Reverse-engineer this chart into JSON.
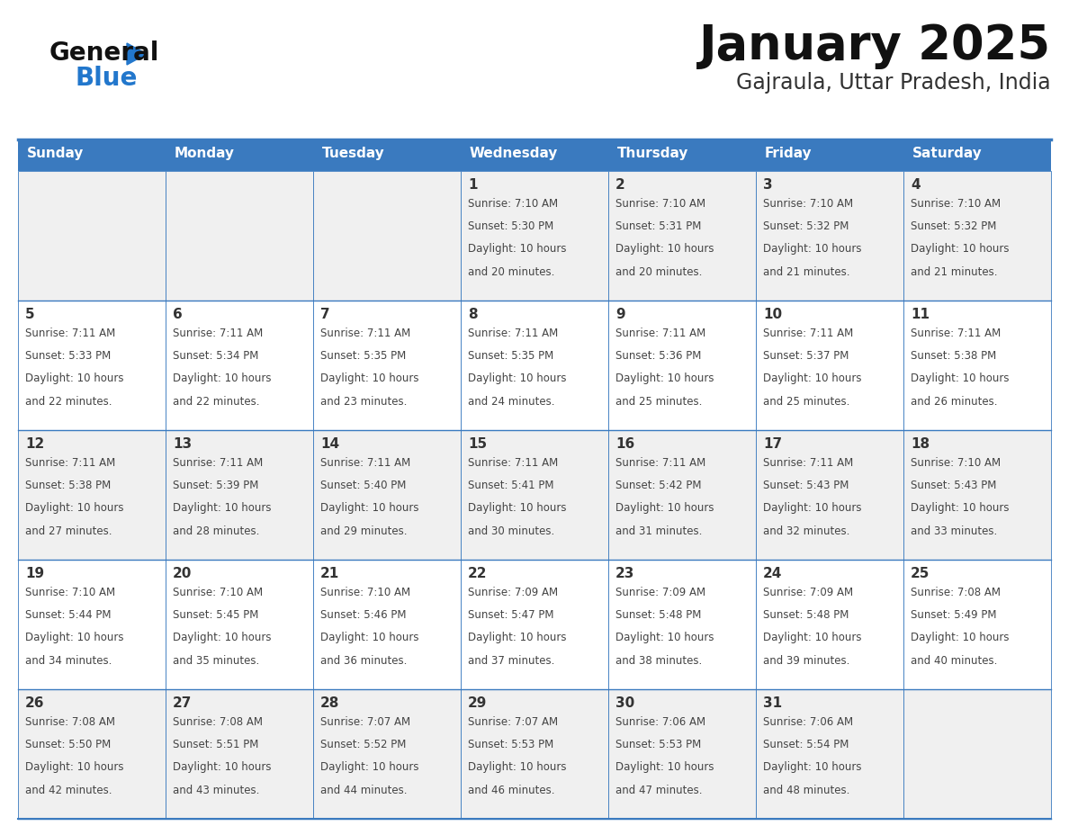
{
  "title": "January 2025",
  "subtitle": "Gajraula, Uttar Pradesh, India",
  "days_of_week": [
    "Sunday",
    "Monday",
    "Tuesday",
    "Wednesday",
    "Thursday",
    "Friday",
    "Saturday"
  ],
  "header_bg": "#3a7abf",
  "header_text": "#ffffff",
  "odd_row_bg": "#f0f0f0",
  "even_row_bg": "#ffffff",
  "cell_border": "#3a7abf",
  "day_number_color": "#333333",
  "cell_text_color": "#444444",
  "title_color": "#111111",
  "subtitle_color": "#333333",
  "logo_general_color": "#111111",
  "logo_blue_color": "#2277cc",
  "calendar": [
    [
      null,
      null,
      null,
      {
        "day": 1,
        "sunrise": "7:10 AM",
        "sunset": "5:30 PM",
        "daylight": "10 hours and 20 minutes."
      },
      {
        "day": 2,
        "sunrise": "7:10 AM",
        "sunset": "5:31 PM",
        "daylight": "10 hours and 20 minutes."
      },
      {
        "day": 3,
        "sunrise": "7:10 AM",
        "sunset": "5:32 PM",
        "daylight": "10 hours and 21 minutes."
      },
      {
        "day": 4,
        "sunrise": "7:10 AM",
        "sunset": "5:32 PM",
        "daylight": "10 hours and 21 minutes."
      }
    ],
    [
      {
        "day": 5,
        "sunrise": "7:11 AM",
        "sunset": "5:33 PM",
        "daylight": "10 hours and 22 minutes."
      },
      {
        "day": 6,
        "sunrise": "7:11 AM",
        "sunset": "5:34 PM",
        "daylight": "10 hours and 22 minutes."
      },
      {
        "day": 7,
        "sunrise": "7:11 AM",
        "sunset": "5:35 PM",
        "daylight": "10 hours and 23 minutes."
      },
      {
        "day": 8,
        "sunrise": "7:11 AM",
        "sunset": "5:35 PM",
        "daylight": "10 hours and 24 minutes."
      },
      {
        "day": 9,
        "sunrise": "7:11 AM",
        "sunset": "5:36 PM",
        "daylight": "10 hours and 25 minutes."
      },
      {
        "day": 10,
        "sunrise": "7:11 AM",
        "sunset": "5:37 PM",
        "daylight": "10 hours and 25 minutes."
      },
      {
        "day": 11,
        "sunrise": "7:11 AM",
        "sunset": "5:38 PM",
        "daylight": "10 hours and 26 minutes."
      }
    ],
    [
      {
        "day": 12,
        "sunrise": "7:11 AM",
        "sunset": "5:38 PM",
        "daylight": "10 hours and 27 minutes."
      },
      {
        "day": 13,
        "sunrise": "7:11 AM",
        "sunset": "5:39 PM",
        "daylight": "10 hours and 28 minutes."
      },
      {
        "day": 14,
        "sunrise": "7:11 AM",
        "sunset": "5:40 PM",
        "daylight": "10 hours and 29 minutes."
      },
      {
        "day": 15,
        "sunrise": "7:11 AM",
        "sunset": "5:41 PM",
        "daylight": "10 hours and 30 minutes."
      },
      {
        "day": 16,
        "sunrise": "7:11 AM",
        "sunset": "5:42 PM",
        "daylight": "10 hours and 31 minutes."
      },
      {
        "day": 17,
        "sunrise": "7:11 AM",
        "sunset": "5:43 PM",
        "daylight": "10 hours and 32 minutes."
      },
      {
        "day": 18,
        "sunrise": "7:10 AM",
        "sunset": "5:43 PM",
        "daylight": "10 hours and 33 minutes."
      }
    ],
    [
      {
        "day": 19,
        "sunrise": "7:10 AM",
        "sunset": "5:44 PM",
        "daylight": "10 hours and 34 minutes."
      },
      {
        "day": 20,
        "sunrise": "7:10 AM",
        "sunset": "5:45 PM",
        "daylight": "10 hours and 35 minutes."
      },
      {
        "day": 21,
        "sunrise": "7:10 AM",
        "sunset": "5:46 PM",
        "daylight": "10 hours and 36 minutes."
      },
      {
        "day": 22,
        "sunrise": "7:09 AM",
        "sunset": "5:47 PM",
        "daylight": "10 hours and 37 minutes."
      },
      {
        "day": 23,
        "sunrise": "7:09 AM",
        "sunset": "5:48 PM",
        "daylight": "10 hours and 38 minutes."
      },
      {
        "day": 24,
        "sunrise": "7:09 AM",
        "sunset": "5:48 PM",
        "daylight": "10 hours and 39 minutes."
      },
      {
        "day": 25,
        "sunrise": "7:08 AM",
        "sunset": "5:49 PM",
        "daylight": "10 hours and 40 minutes."
      }
    ],
    [
      {
        "day": 26,
        "sunrise": "7:08 AM",
        "sunset": "5:50 PM",
        "daylight": "10 hours and 42 minutes."
      },
      {
        "day": 27,
        "sunrise": "7:08 AM",
        "sunset": "5:51 PM",
        "daylight": "10 hours and 43 minutes."
      },
      {
        "day": 28,
        "sunrise": "7:07 AM",
        "sunset": "5:52 PM",
        "daylight": "10 hours and 44 minutes."
      },
      {
        "day": 29,
        "sunrise": "7:07 AM",
        "sunset": "5:53 PM",
        "daylight": "10 hours and 46 minutes."
      },
      {
        "day": 30,
        "sunrise": "7:06 AM",
        "sunset": "5:53 PM",
        "daylight": "10 hours and 47 minutes."
      },
      {
        "day": 31,
        "sunrise": "7:06 AM",
        "sunset": "5:54 PM",
        "daylight": "10 hours and 48 minutes."
      },
      null
    ]
  ]
}
